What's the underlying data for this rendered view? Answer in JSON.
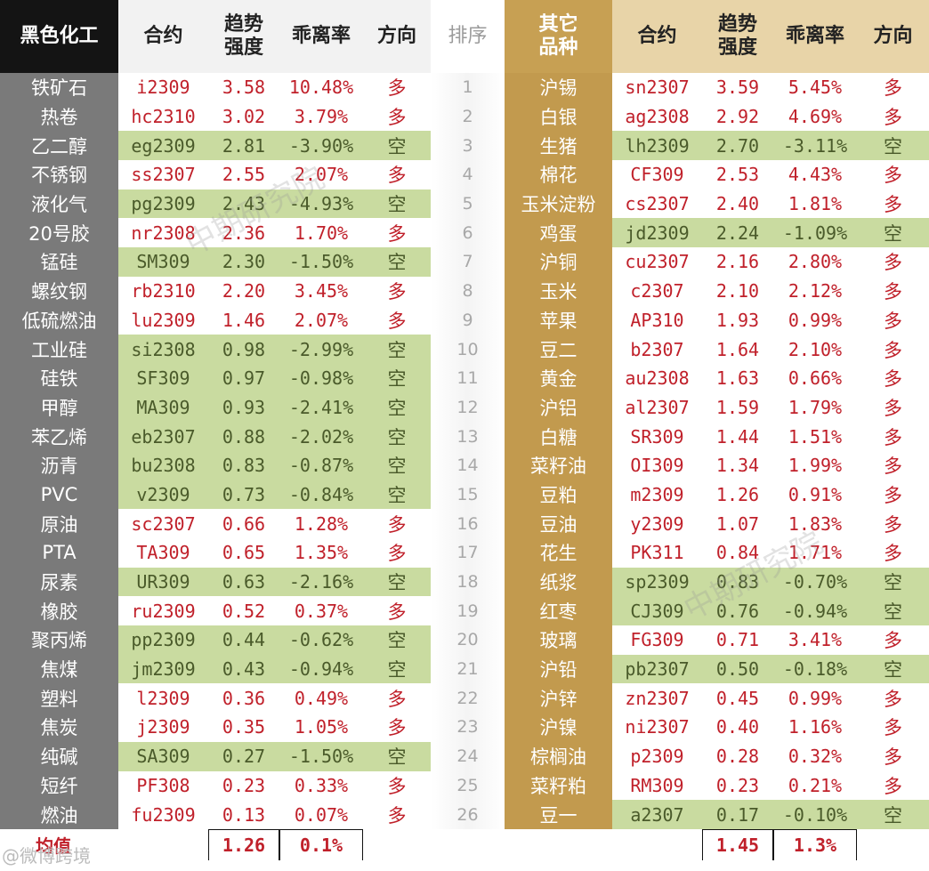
{
  "headers": {
    "left_category": "黑色化工",
    "contract": "合约",
    "trend": "趋势\n强度",
    "deviation": "乖离率",
    "direction": "方向",
    "rank": "排序",
    "right_category": "其它\n品种"
  },
  "left": [
    {
      "name": "铁矿石",
      "code": "i2309",
      "trend": "3.58",
      "dev": "10.48%",
      "dir": "多"
    },
    {
      "name": "热卷",
      "code": "hc2310",
      "trend": "3.02",
      "dev": "3.79%",
      "dir": "多"
    },
    {
      "name": "乙二醇",
      "code": "eg2309",
      "trend": "2.81",
      "dev": "-3.90%",
      "dir": "空"
    },
    {
      "name": "不锈钢",
      "code": "ss2307",
      "trend": "2.55",
      "dev": "2.07%",
      "dir": "多"
    },
    {
      "name": "液化气",
      "code": "pg2309",
      "trend": "2.43",
      "dev": "-4.93%",
      "dir": "空"
    },
    {
      "name": "20号胶",
      "code": "nr2308",
      "trend": "2.36",
      "dev": "1.70%",
      "dir": "多"
    },
    {
      "name": "锰硅",
      "code": "SM309",
      "trend": "2.30",
      "dev": "-1.50%",
      "dir": "空"
    },
    {
      "name": "螺纹钢",
      "code": "rb2310",
      "trend": "2.20",
      "dev": "3.45%",
      "dir": "多"
    },
    {
      "name": "低硫燃油",
      "code": "lu2309",
      "trend": "1.46",
      "dev": "2.07%",
      "dir": "多"
    },
    {
      "name": "工业硅",
      "code": "si2308",
      "trend": "0.98",
      "dev": "-2.99%",
      "dir": "空"
    },
    {
      "name": "硅铁",
      "code": "SF309",
      "trend": "0.97",
      "dev": "-0.98%",
      "dir": "空"
    },
    {
      "name": "甲醇",
      "code": "MA309",
      "trend": "0.93",
      "dev": "-2.41%",
      "dir": "空"
    },
    {
      "name": "苯乙烯",
      "code": "eb2307",
      "trend": "0.88",
      "dev": "-2.02%",
      "dir": "空"
    },
    {
      "name": "沥青",
      "code": "bu2308",
      "trend": "0.83",
      "dev": "-0.87%",
      "dir": "空"
    },
    {
      "name": "PVC",
      "code": "v2309",
      "trend": "0.73",
      "dev": "-0.84%",
      "dir": "空"
    },
    {
      "name": "原油",
      "code": "sc2307",
      "trend": "0.66",
      "dev": "1.28%",
      "dir": "多"
    },
    {
      "name": "PTA",
      "code": "TA309",
      "trend": "0.65",
      "dev": "1.35%",
      "dir": "多"
    },
    {
      "name": "尿素",
      "code": "UR309",
      "trend": "0.63",
      "dev": "-2.16%",
      "dir": "空"
    },
    {
      "name": "橡胶",
      "code": "ru2309",
      "trend": "0.52",
      "dev": "0.37%",
      "dir": "多"
    },
    {
      "name": "聚丙烯",
      "code": "pp2309",
      "trend": "0.44",
      "dev": "-0.62%",
      "dir": "空"
    },
    {
      "name": "焦煤",
      "code": "jm2309",
      "trend": "0.43",
      "dev": "-0.94%",
      "dir": "空"
    },
    {
      "name": "塑料",
      "code": "l2309",
      "trend": "0.36",
      "dev": "0.49%",
      "dir": "多"
    },
    {
      "name": "焦炭",
      "code": "j2309",
      "trend": "0.35",
      "dev": "1.05%",
      "dir": "多"
    },
    {
      "name": "纯碱",
      "code": "SA309",
      "trend": "0.27",
      "dev": "-1.50%",
      "dir": "空"
    },
    {
      "name": "短纤",
      "code": "PF308",
      "trend": "0.23",
      "dev": "0.33%",
      "dir": "多"
    },
    {
      "name": "燃油",
      "code": "fu2309",
      "trend": "0.13",
      "dev": "0.07%",
      "dir": "多"
    }
  ],
  "ranks": [
    "1",
    "2",
    "3",
    "4",
    "5",
    "6",
    "7",
    "8",
    "9",
    "10",
    "11",
    "12",
    "13",
    "14",
    "15",
    "16",
    "17",
    "18",
    "19",
    "20",
    "21",
    "22",
    "23",
    "24",
    "25",
    "26"
  ],
  "right": [
    {
      "name": "沪锡",
      "code": "sn2307",
      "trend": "3.59",
      "dev": "5.45%",
      "dir": "多"
    },
    {
      "name": "白银",
      "code": "ag2308",
      "trend": "2.92",
      "dev": "4.69%",
      "dir": "多"
    },
    {
      "name": "生猪",
      "code": "lh2309",
      "trend": "2.70",
      "dev": "-3.11%",
      "dir": "空"
    },
    {
      "name": "棉花",
      "code": "CF309",
      "trend": "2.53",
      "dev": "4.43%",
      "dir": "多"
    },
    {
      "name": "玉米淀粉",
      "code": "cs2307",
      "trend": "2.40",
      "dev": "1.81%",
      "dir": "多"
    },
    {
      "name": "鸡蛋",
      "code": "jd2309",
      "trend": "2.24",
      "dev": "-1.09%",
      "dir": "空"
    },
    {
      "name": "沪铜",
      "code": "cu2307",
      "trend": "2.16",
      "dev": "2.80%",
      "dir": "多"
    },
    {
      "name": "玉米",
      "code": "c2307",
      "trend": "2.10",
      "dev": "2.12%",
      "dir": "多"
    },
    {
      "name": "苹果",
      "code": "AP310",
      "trend": "1.93",
      "dev": "0.99%",
      "dir": "多"
    },
    {
      "name": "豆二",
      "code": "b2307",
      "trend": "1.64",
      "dev": "2.10%",
      "dir": "多"
    },
    {
      "name": "黄金",
      "code": "au2308",
      "trend": "1.63",
      "dev": "0.66%",
      "dir": "多"
    },
    {
      "name": "沪铝",
      "code": "al2307",
      "trend": "1.59",
      "dev": "1.79%",
      "dir": "多"
    },
    {
      "name": "白糖",
      "code": "SR309",
      "trend": "1.44",
      "dev": "1.51%",
      "dir": "多"
    },
    {
      "name": "菜籽油",
      "code": "OI309",
      "trend": "1.34",
      "dev": "1.99%",
      "dir": "多"
    },
    {
      "name": "豆粕",
      "code": "m2309",
      "trend": "1.26",
      "dev": "0.91%",
      "dir": "多"
    },
    {
      "name": "豆油",
      "code": "y2309",
      "trend": "1.07",
      "dev": "1.83%",
      "dir": "多"
    },
    {
      "name": "花生",
      "code": "PK311",
      "trend": "0.84",
      "dev": "1.71%",
      "dir": "多"
    },
    {
      "name": "纸浆",
      "code": "sp2309",
      "trend": "0.83",
      "dev": "-0.70%",
      "dir": "空"
    },
    {
      "name": "红枣",
      "code": "CJ309",
      "trend": "0.76",
      "dev": "-0.94%",
      "dir": "空"
    },
    {
      "name": "玻璃",
      "code": "FG309",
      "trend": "0.71",
      "dev": "3.41%",
      "dir": "多"
    },
    {
      "name": "沪铅",
      "code": "pb2307",
      "trend": "0.50",
      "dev": "-0.18%",
      "dir": "空"
    },
    {
      "name": "沪锌",
      "code": "zn2307",
      "trend": "0.45",
      "dev": "0.99%",
      "dir": "多"
    },
    {
      "name": "沪镍",
      "code": "ni2307",
      "trend": "0.40",
      "dev": "1.16%",
      "dir": "多"
    },
    {
      "name": "棕榈油",
      "code": "p2309",
      "trend": "0.28",
      "dev": "0.32%",
      "dir": "多"
    },
    {
      "name": "菜籽粕",
      "code": "RM309",
      "trend": "0.23",
      "dev": "0.21%",
      "dir": "多"
    },
    {
      "name": "豆一",
      "code": "a2307",
      "trend": "0.17",
      "dev": "-0.10%",
      "dir": "空"
    }
  ],
  "footer": {
    "label": "均值",
    "left_trend": "1.26",
    "left_dev": "0.1%",
    "right_trend": "1.45",
    "right_dev": "1.3%"
  },
  "watermark": {
    "text": "中期研究院",
    "bottom_text": "@微博跨境"
  },
  "colors": {
    "long": "#c0202a",
    "short_bg": "#c9dba0",
    "left_header_bg": "#141414",
    "right_header_bg": "#c7a053",
    "left_name_bg": "#7a7a7a",
    "right_name_bg": "#c29a4e"
  }
}
